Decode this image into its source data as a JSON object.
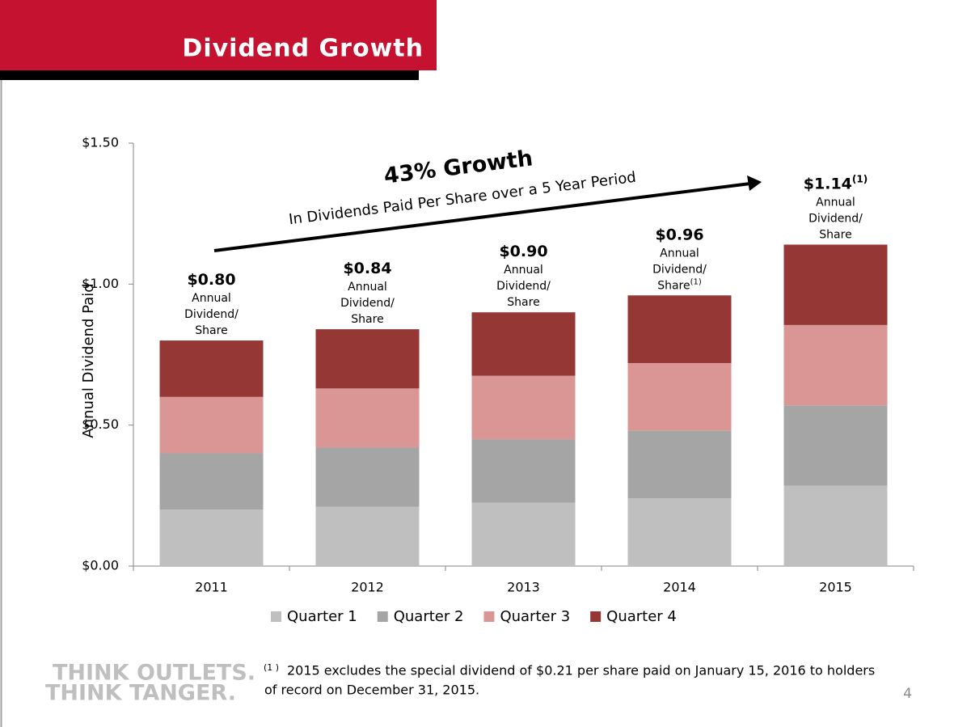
{
  "header": {
    "title": "Dividend Growth"
  },
  "chart_data": {
    "type": "stacked_bar",
    "ylabel": "Annual Dividend Paid",
    "categories": [
      "2011",
      "2012",
      "2013",
      "2014",
      "2015"
    ],
    "series": [
      {
        "name": "Quarter 1",
        "color": "#bfbfbf",
        "values": [
          0.2,
          0.21,
          0.225,
          0.24,
          0.285
        ]
      },
      {
        "name": "Quarter 2",
        "color": "#a5a5a5",
        "values": [
          0.2,
          0.21,
          0.225,
          0.24,
          0.285
        ]
      },
      {
        "name": "Quarter 3",
        "color": "#d99694",
        "values": [
          0.2,
          0.21,
          0.225,
          0.24,
          0.285
        ]
      },
      {
        "name": "Quarter 4",
        "color": "#953735",
        "values": [
          0.2,
          0.21,
          0.225,
          0.24,
          0.285
        ]
      }
    ],
    "bar_annotations": [
      {
        "value": 0.8,
        "label": "$0.80",
        "lines": [
          "Annual",
          "Dividend/",
          "Share"
        ]
      },
      {
        "value": 0.84,
        "label": "$0.84",
        "lines": [
          "Annual",
          "Dividend/",
          "Share"
        ]
      },
      {
        "value": 0.9,
        "label": "$0.90",
        "lines": [
          "Annual",
          "Dividend/",
          "Share"
        ]
      },
      {
        "value": 0.96,
        "label": "$0.96",
        "lines": [
          "Annual",
          "Dividend/",
          "Share"
        ],
        "line_note": "(1)"
      },
      {
        "value": 1.14,
        "label": "$1.14",
        "label_note": "(1)",
        "lines": [
          "Annual",
          "Dividend/",
          "Share"
        ]
      }
    ],
    "growth_annotation": {
      "title": "43% Growth",
      "subtitle": "In Dividends Paid Per Share over a 5 Year Period"
    },
    "ylim": [
      0,
      1.5
    ],
    "yticks": [
      {
        "value": 0,
        "label": "$0.00"
      },
      {
        "value": 0.5,
        "label": "$0.50"
      },
      {
        "value": 1,
        "label": "$1.00"
      },
      {
        "value": 1.5,
        "label": "$1.50"
      }
    ],
    "grid": false,
    "legend": "bottom"
  },
  "footnote": {
    "marker": "(1 )",
    "lines": [
      "2015 excludes the special dividend of $0.21 per share paid on January 15, 2016 to holders",
      "of record on December 31, 2015."
    ]
  },
  "logo": {
    "lines": [
      "THINK OUTLETS.",
      "THINK TANGER."
    ]
  },
  "page_number": "4"
}
